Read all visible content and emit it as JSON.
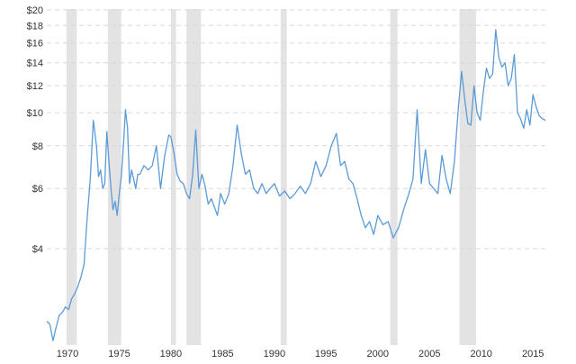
{
  "chart_data": {
    "type": "line",
    "title": "",
    "xlabel": "",
    "ylabel": "",
    "y_scale": "log",
    "xlim": [
      1968.0,
      2016.2
    ],
    "ylim": [
      2.1,
      20
    ],
    "grid": true,
    "line_color": "#5b9bd5",
    "recession_color": "#e3e3e3",
    "x_ticks": [
      {
        "value": 1970,
        "label": "1970"
      },
      {
        "value": 1975,
        "label": "1975"
      },
      {
        "value": 1980,
        "label": "1980"
      },
      {
        "value": 1985,
        "label": "1985"
      },
      {
        "value": 1990,
        "label": "1990"
      },
      {
        "value": 1995,
        "label": "1995"
      },
      {
        "value": 2000,
        "label": "2000"
      },
      {
        "value": 2005,
        "label": "2005"
      },
      {
        "value": 2010,
        "label": "2010"
      },
      {
        "value": 2015,
        "label": "2015"
      }
    ],
    "y_ticks": [
      {
        "value": 4,
        "label": "$4"
      },
      {
        "value": 6,
        "label": "$6"
      },
      {
        "value": 8,
        "label": "$8"
      },
      {
        "value": 10,
        "label": "$10"
      },
      {
        "value": 12,
        "label": "$12"
      },
      {
        "value": 14,
        "label": "$14"
      },
      {
        "value": 16,
        "label": "$16"
      },
      {
        "value": 18,
        "label": "$18"
      },
      {
        "value": 20,
        "label": "$20"
      }
    ],
    "recessions": [
      [
        1969.9,
        1970.9
      ],
      [
        1973.9,
        1975.2
      ],
      [
        1980.0,
        1980.5
      ],
      [
        1981.5,
        1982.9
      ],
      [
        1990.6,
        1991.2
      ],
      [
        2001.2,
        2001.9
      ],
      [
        2007.9,
        2009.5
      ]
    ],
    "x": [
      1968.0,
      1968.3,
      1968.6,
      1968.9,
      1969.2,
      1969.5,
      1969.8,
      1970.1,
      1970.4,
      1970.7,
      1971.0,
      1971.3,
      1971.6,
      1971.9,
      1972.2,
      1972.5,
      1972.8,
      1973.0,
      1973.2,
      1973.4,
      1973.6,
      1973.8,
      1974.0,
      1974.2,
      1974.4,
      1974.6,
      1974.8,
      1975.0,
      1975.2,
      1975.4,
      1975.6,
      1975.8,
      1976.0,
      1976.2,
      1976.4,
      1976.6,
      1976.8,
      1977.0,
      1977.4,
      1977.8,
      1978.2,
      1978.6,
      1979.0,
      1979.4,
      1979.8,
      1980.0,
      1980.3,
      1980.6,
      1980.9,
      1981.2,
      1981.5,
      1981.8,
      1982.1,
      1982.4,
      1982.7,
      1983.0,
      1983.3,
      1983.6,
      1983.9,
      1984.2,
      1984.5,
      1984.8,
      1985.2,
      1985.6,
      1986.0,
      1986.4,
      1986.8,
      1987.2,
      1987.6,
      1988.0,
      1988.4,
      1988.8,
      1989.2,
      1989.6,
      1990.0,
      1990.5,
      1991.0,
      1991.5,
      1992.0,
      1992.5,
      1993.0,
      1993.5,
      1994.0,
      1994.5,
      1995.0,
      1995.5,
      1996.0,
      1996.4,
      1996.8,
      1997.2,
      1997.6,
      1998.0,
      1998.4,
      1998.8,
      1999.2,
      1999.6,
      2000.0,
      2000.5,
      2001.0,
      2001.5,
      2002.0,
      2002.5,
      2003.0,
      2003.4,
      2003.8,
      2004.2,
      2004.6,
      2005.0,
      2005.4,
      2005.8,
      2006.2,
      2006.6,
      2007.0,
      2007.4,
      2007.8,
      2008.1,
      2008.4,
      2008.7,
      2009.0,
      2009.3,
      2009.6,
      2009.9,
      2010.2,
      2010.5,
      2010.8,
      2011.1,
      2011.4,
      2011.7,
      2012.0,
      2012.3,
      2012.6,
      2012.9,
      2013.2,
      2013.5,
      2013.8,
      2014.1,
      2014.4,
      2014.7,
      2015.0,
      2015.3,
      2015.6,
      2015.9,
      2016.2
    ],
    "y": [
      2.45,
      2.4,
      2.15,
      2.35,
      2.55,
      2.6,
      2.7,
      2.65,
      2.85,
      2.95,
      3.1,
      3.3,
      3.6,
      4.9,
      6.4,
      9.5,
      8.0,
      6.5,
      6.8,
      6.0,
      6.2,
      8.8,
      7.2,
      6.0,
      5.2,
      5.5,
      5.0,
      5.8,
      6.5,
      8.0,
      10.2,
      9.0,
      6.2,
      6.8,
      6.4,
      6.0,
      6.6,
      6.6,
      7.0,
      6.8,
      7.0,
      8.0,
      6.0,
      7.5,
      8.6,
      8.5,
      7.6,
      6.6,
      6.3,
      6.2,
      5.8,
      5.6,
      6.6,
      8.9,
      6.0,
      6.6,
      6.1,
      5.4,
      5.6,
      5.3,
      5.0,
      5.8,
      5.4,
      5.8,
      7.0,
      9.2,
      7.6,
      6.6,
      6.8,
      6.0,
      5.8,
      6.2,
      5.8,
      6.0,
      6.2,
      5.7,
      5.9,
      5.6,
      5.8,
      6.1,
      5.8,
      6.2,
      7.2,
      6.5,
      7.0,
      8.0,
      8.7,
      7.0,
      7.2,
      6.4,
      6.2,
      5.6,
      5.0,
      4.6,
      4.8,
      4.4,
      5.0,
      4.7,
      4.8,
      4.3,
      4.6,
      5.2,
      5.8,
      6.4,
      10.2,
      6.2,
      7.8,
      6.2,
      6.0,
      5.8,
      7.5,
      6.4,
      5.8,
      7.2,
      10.5,
      13.2,
      11.0,
      9.3,
      9.2,
      12.0,
      10.0,
      9.5,
      11.5,
      13.5,
      12.6,
      13.0,
      17.5,
      14.5,
      13.6,
      14.0,
      12.0,
      12.6,
      14.8,
      10.0,
      9.6,
      9.0,
      10.2,
      9.2,
      11.3,
      10.4,
      9.8,
      9.6,
      9.5
    ]
  }
}
